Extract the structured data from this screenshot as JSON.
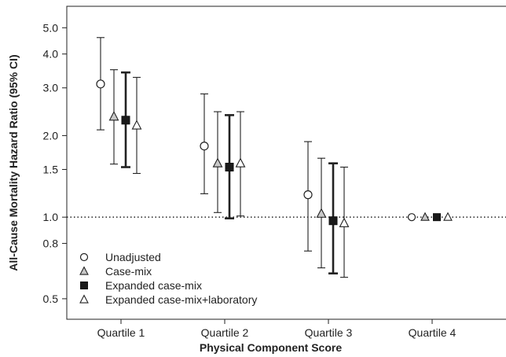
{
  "chart_data": {
    "type": "scatter",
    "subtype": "forest-plot-with-error-bars",
    "xlabel": "Physical Component Score",
    "ylabel": "All-Cause Mortality Hazard Ratio (95% CI)",
    "y_scale": "log",
    "ylim": [
      0.42,
      6.0
    ],
    "y_ticks": [
      0.5,
      0.8,
      1.0,
      1.5,
      2.0,
      3.0,
      4.0,
      5.0
    ],
    "y_tick_labels": [
      "0.5",
      "0.8",
      "1.0",
      "1.5",
      "2.0",
      "3.0",
      "4.0",
      "5.0"
    ],
    "categories": [
      "Quartile 1",
      "Quartile 2",
      "Quartile 3",
      "Quartile 4"
    ],
    "reference_line": {
      "y": 1.0,
      "style": "dotted"
    },
    "grid": false,
    "legend_position": "bottom-left",
    "series": [
      {
        "name": "Unadjusted",
        "marker": "open-circle",
        "color": "#ffffff",
        "values": [
          3.1,
          1.83,
          1.21,
          1.0
        ],
        "lower": [
          2.1,
          1.22,
          0.75,
          null
        ],
        "upper": [
          4.6,
          2.85,
          1.9,
          null
        ]
      },
      {
        "name": "Case-mix",
        "marker": "gray-triangle",
        "color": "#c8c8c8",
        "values": [
          2.35,
          1.58,
          1.03,
          1.0
        ],
        "lower": [
          1.57,
          1.04,
          0.65,
          null
        ],
        "upper": [
          3.5,
          2.45,
          1.65,
          null
        ]
      },
      {
        "name": "Expanded case-mix",
        "marker": "filled-square",
        "color": "#1a1a1a",
        "values": [
          2.28,
          1.53,
          0.97,
          1.0
        ],
        "lower": [
          1.53,
          0.99,
          0.62,
          null
        ],
        "upper": [
          3.42,
          2.38,
          1.58,
          null
        ]
      },
      {
        "name": "Expanded case-mix+laboratory",
        "marker": "open-triangle",
        "color": "#ffffff",
        "values": [
          2.18,
          1.58,
          0.95,
          1.0
        ],
        "lower": [
          1.45,
          1.01,
          0.6,
          null
        ],
        "upper": [
          3.28,
          2.45,
          1.53,
          null
        ]
      }
    ]
  }
}
